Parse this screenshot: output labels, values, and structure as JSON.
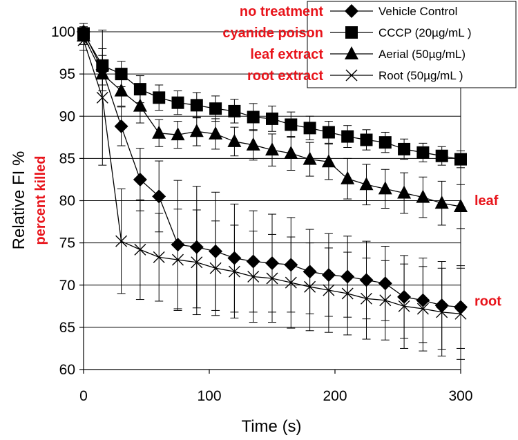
{
  "chart_data": {
    "type": "line",
    "title": "",
    "xlabel": "Time (s)",
    "ylabel": "Relative FI %",
    "ylabel_overlay": "percent killed",
    "xlim": [
      0,
      300
    ],
    "ylim": [
      60,
      100
    ],
    "x_ticks": [
      0,
      100,
      200,
      300
    ],
    "y_ticks": [
      60,
      65,
      70,
      75,
      80,
      85,
      90,
      95,
      100
    ],
    "grid": "horizontal",
    "legend_position": "top-right",
    "series": [
      {
        "name": "Vehicle Control",
        "annotation": "no treatment",
        "marker": "diamond",
        "x": [
          0,
          15,
          30,
          45,
          60,
          75,
          90,
          105,
          120,
          135,
          150,
          165,
          180,
          195,
          210,
          225,
          240,
          255,
          270,
          285,
          300
        ],
        "y": [
          100,
          95.5,
          88.8,
          82.5,
          80.5,
          74.8,
          74.5,
          74.0,
          73.2,
          72.8,
          72.6,
          72.4,
          71.6,
          71.2,
          71.0,
          70.6,
          70.2,
          68.6,
          68.2,
          67.6,
          67.4
        ],
        "err": [
          1.0,
          2.5,
          2.3,
          3.7,
          4.2,
          7.6,
          7.2,
          7.0,
          6.4,
          6.0,
          5.8,
          5.6,
          5.0,
          4.9,
          4.8,
          4.6,
          4.4,
          4.9,
          5.0,
          5.2,
          4.9
        ]
      },
      {
        "name": "CCCP (20µg/mL )",
        "annotation": "cyanide poison",
        "marker": "square",
        "x": [
          0,
          15,
          30,
          45,
          60,
          75,
          90,
          105,
          120,
          135,
          150,
          165,
          180,
          195,
          210,
          225,
          240,
          255,
          270,
          285,
          300
        ],
        "y": [
          99.8,
          96.0,
          95.0,
          93.2,
          92.2,
          91.6,
          91.3,
          90.9,
          90.6,
          89.9,
          89.7,
          89.0,
          88.6,
          88.1,
          87.6,
          87.2,
          86.9,
          86.1,
          85.7,
          85.3,
          84.9
        ],
        "err": [
          0.8,
          1.2,
          1.5,
          1.6,
          1.5,
          1.4,
          1.5,
          1.5,
          1.4,
          1.6,
          1.5,
          1.5,
          1.4,
          1.3,
          1.3,
          1.2,
          1.2,
          1.2,
          1.1,
          1.1,
          1.0
        ]
      },
      {
        "name": "Aerial (50µg/mL)",
        "annotation": "leaf extract",
        "marker": "triangle",
        "x": [
          0,
          15,
          30,
          45,
          60,
          75,
          90,
          105,
          120,
          135,
          150,
          165,
          180,
          195,
          210,
          225,
          240,
          255,
          270,
          285,
          300
        ],
        "y": [
          99.5,
          95.0,
          93.0,
          91.2,
          88.0,
          87.8,
          88.2,
          87.9,
          87.0,
          86.6,
          86.0,
          85.6,
          84.9,
          84.6,
          82.6,
          81.9,
          81.4,
          80.9,
          80.4,
          79.7,
          79.3
        ],
        "err": [
          1.0,
          1.3,
          1.8,
          2.0,
          1.6,
          1.6,
          1.7,
          1.8,
          1.7,
          1.8,
          1.9,
          2.0,
          2.0,
          2.1,
          2.4,
          2.4,
          2.3,
          2.4,
          2.4,
          2.6,
          2.6
        ]
      },
      {
        "name": "Root (50µg/mL )",
        "annotation": "root extract",
        "marker": "x",
        "x": [
          0,
          15,
          30,
          45,
          60,
          75,
          90,
          105,
          120,
          135,
          150,
          165,
          180,
          195,
          210,
          225,
          240,
          255,
          270,
          285,
          300
        ],
        "y": [
          99.0,
          92.2,
          75.2,
          74.2,
          73.3,
          73.0,
          72.7,
          72.0,
          71.6,
          71.0,
          70.8,
          70.3,
          69.8,
          69.4,
          69.0,
          68.4,
          68.2,
          67.5,
          67.2,
          66.8,
          66.6
        ],
        "err": [
          1.2,
          8.0,
          6.2,
          5.9,
          5.2,
          6.0,
          6.2,
          5.6,
          5.5,
          5.4,
          5.2,
          5.4,
          5.2,
          5.0,
          4.9,
          4.8,
          4.7,
          5.0,
          5.0,
          5.2,
          5.4
        ]
      }
    ],
    "side_labels": [
      {
        "text": "leaf",
        "series": "Aerial (50µg/mL)"
      },
      {
        "text": "root",
        "series": "Vehicle Control"
      }
    ]
  }
}
